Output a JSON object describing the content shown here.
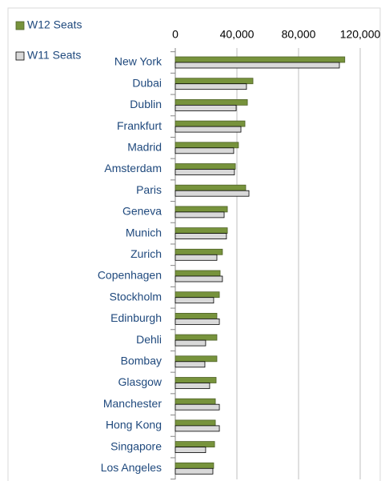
{
  "chart_data": {
    "type": "bar",
    "orientation": "horizontal",
    "categories": [
      "New York",
      "Dubai",
      "Dublin",
      "Frankfurt",
      "Madrid",
      "Amsterdam",
      "Paris",
      "Geneva",
      "Munich",
      "Zurich",
      "Copenhagen",
      "Stockholm",
      "Edinburgh",
      "Dehli",
      "Bombay",
      "Glasgow",
      "Manchester",
      "Hong Kong",
      "Singapore",
      "Los Angeles"
    ],
    "series": [
      {
        "name": "W12 Seats",
        "color": "#77933c",
        "values": [
          110000,
          50400,
          46800,
          45200,
          41000,
          39000,
          45700,
          33800,
          33800,
          30600,
          29100,
          28600,
          27000,
          27000,
          27000,
          26500,
          26000,
          26000,
          25500,
          24900
        ]
      },
      {
        "name": "W11 Seats",
        "color": "#d9d9d9",
        "values": [
          106500,
          46200,
          39500,
          42600,
          37900,
          38400,
          47800,
          31700,
          33200,
          27000,
          30600,
          24900,
          28600,
          19700,
          19200,
          22300,
          28600,
          28600,
          19700,
          24400
        ]
      }
    ],
    "xlim": [
      0,
      120000
    ],
    "xticks": [
      0,
      {
        "value": 40000,
        "label": "40,000"
      },
      {
        "value": 80000,
        "label": "80,000"
      },
      {
        "value": 120000,
        "label": "120,000"
      }
    ],
    "grid": true
  }
}
